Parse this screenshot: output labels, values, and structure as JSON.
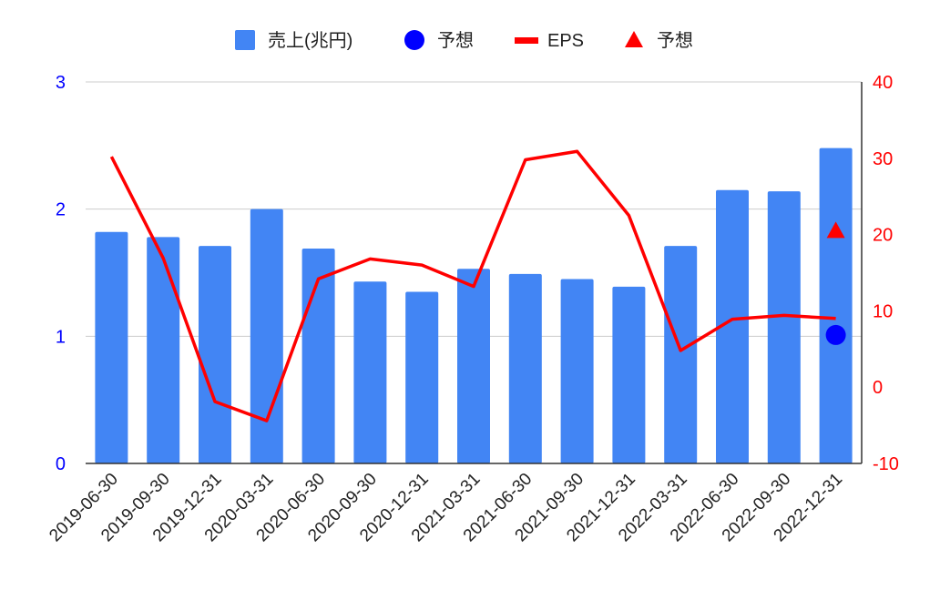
{
  "chart_data": {
    "type": "bar",
    "categories": [
      "2019-06-30",
      "2019-09-30",
      "2019-12-31",
      "2020-03-31",
      "2020-06-30",
      "2020-09-30",
      "2020-12-31",
      "2021-03-31",
      "2021-06-30",
      "2021-09-30",
      "2021-12-31",
      "2022-03-31",
      "2022-06-30",
      "2022-09-30",
      "2022-12-31"
    ],
    "series": [
      {
        "name": "売上(兆円)",
        "kind": "bar",
        "axis": "left",
        "color": "#4285f4",
        "values": [
          1.82,
          1.78,
          1.71,
          2.0,
          1.69,
          1.43,
          1.35,
          1.53,
          1.49,
          1.45,
          1.39,
          1.71,
          2.15,
          2.14,
          2.48
        ]
      },
      {
        "name": "予想",
        "kind": "point",
        "marker": "circle",
        "axis": "left",
        "color": "#0000ff",
        "values": [
          null,
          null,
          null,
          null,
          null,
          null,
          null,
          null,
          null,
          null,
          null,
          null,
          null,
          null,
          1.01
        ]
      },
      {
        "name": "EPS",
        "kind": "line",
        "axis": "right",
        "color": "#ff0000",
        "values": [
          30.2,
          16.9,
          -1.9,
          -4.4,
          14.2,
          16.8,
          16.0,
          13.2,
          29.8,
          30.9,
          22.5,
          4.8,
          8.9,
          9.4,
          9.0
        ]
      },
      {
        "name": "予想",
        "kind": "point",
        "marker": "triangle",
        "axis": "right",
        "color": "#ff0000",
        "values": [
          null,
          null,
          null,
          null,
          null,
          null,
          null,
          null,
          null,
          null,
          null,
          null,
          null,
          null,
          20.5
        ]
      }
    ],
    "y_left": {
      "min": 0,
      "max": 3,
      "ticks": [
        "0",
        "1",
        "2",
        "3"
      ],
      "color": "#0000ff"
    },
    "y_right": {
      "min": -10,
      "max": 40,
      "ticks": [
        "-10",
        "0",
        "10",
        "20",
        "30",
        "40"
      ],
      "color": "#ff0000"
    },
    "grid": true,
    "legend_position": "top"
  }
}
